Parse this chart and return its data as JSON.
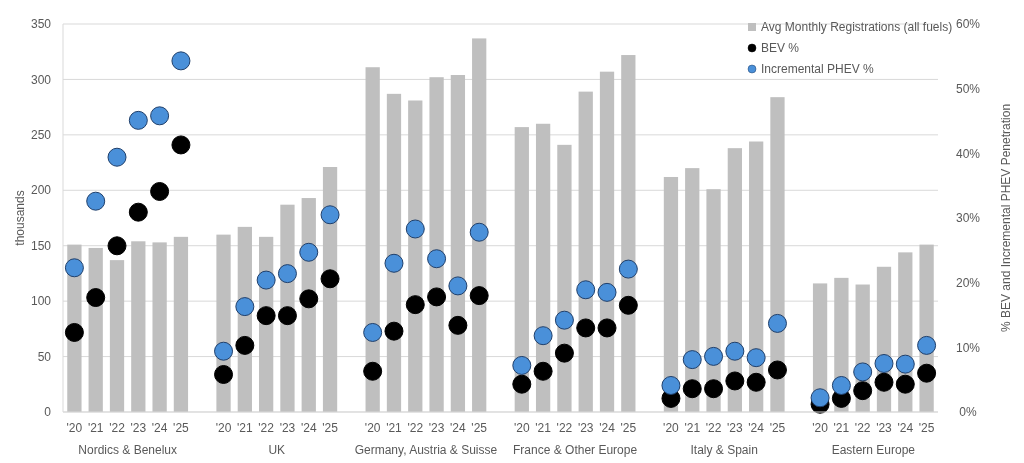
{
  "chart_data": {
    "type": "bar",
    "ylabel": "thousands",
    "y2label": "% BEV and Incremental PHEV Penetration",
    "categories": [
      "'20",
      "'21",
      "'22",
      "'23",
      "'24",
      "'25",
      null,
      "'20",
      "'21",
      "'22",
      "'23",
      "'24",
      "'25",
      null,
      "'20",
      "'21",
      "'22",
      "'23",
      "'24",
      "'25",
      null,
      "'20",
      "'21",
      "'22",
      "'23",
      "'24",
      "'25",
      null,
      "'20",
      "'21",
      "'22",
      "'23",
      "'24",
      "'25",
      null,
      "'20",
      "'21",
      "'22",
      "'23",
      "'24",
      "'25"
    ],
    "series": [
      {
        "name": "Avg Monthly Registrations (all fuels)",
        "type": "bar",
        "color": "#bfbfbf",
        "values": [
          151,
          148,
          137,
          154,
          153,
          158,
          null,
          160,
          167,
          158,
          187,
          193,
          221,
          null,
          311,
          287,
          281,
          302,
          304,
          337,
          null,
          257,
          260,
          241,
          289,
          307,
          322,
          null,
          212,
          220,
          201,
          238,
          244,
          284,
          null,
          116,
          121,
          115,
          131,
          144,
          151
        ]
      },
      {
        "name": "BEV %",
        "type": "scatter",
        "axis": "y2",
        "color": "#000000",
        "values": [
          12.3,
          17.7,
          25.7,
          30.9,
          34.1,
          41.3,
          null,
          5.8,
          10.3,
          14.9,
          14.9,
          17.5,
          20.6,
          null,
          6.3,
          12.5,
          16.6,
          17.8,
          13.4,
          18.0,
          null,
          4.3,
          6.3,
          9.1,
          13.0,
          13.0,
          16.5,
          null,
          2.1,
          3.6,
          3.6,
          4.8,
          4.6,
          6.5,
          null,
          1.2,
          2.1,
          3.3,
          4.6,
          4.3,
          6.0
        ]
      },
      {
        "name": "Incremental PHEV %",
        "type": "scatter",
        "axis": "y2",
        "color": "#4a90d9",
        "values": [
          22.3,
          32.6,
          39.4,
          45.1,
          45.8,
          54.3,
          null,
          9.4,
          16.3,
          20.4,
          21.4,
          24.7,
          30.5,
          null,
          12.3,
          23.0,
          28.3,
          23.7,
          19.5,
          27.8,
          null,
          7.2,
          11.8,
          14.2,
          18.9,
          18.5,
          22.1,
          null,
          4.1,
          8.1,
          8.6,
          9.4,
          8.4,
          13.7,
          null,
          2.2,
          4.1,
          6.2,
          7.5,
          7.4,
          10.3
        ]
      }
    ],
    "ylim": [
      0,
      350
    ],
    "yticks": [
      0,
      50,
      100,
      150,
      200,
      250,
      300,
      350
    ],
    "y2lim": [
      0,
      60
    ],
    "y2ticks": [
      {
        "value": 0,
        "label": "0%"
      },
      {
        "value": 10,
        "label": "10%"
      },
      {
        "value": 20,
        "label": "20%"
      },
      {
        "value": 30,
        "label": "30%"
      },
      {
        "value": 40,
        "label": "40%"
      },
      {
        "value": 50,
        "label": "50%"
      },
      {
        "value": 60,
        "label": "60%"
      }
    ],
    "annotations": [
      "Nordics & Benelux",
      "UK",
      "Germany, Austria & Suisse",
      "France & Other Europe",
      "Italy & Spain",
      "Eastern Europe"
    ],
    "grid": "y",
    "legend": "top right",
    "marker": "circle"
  }
}
